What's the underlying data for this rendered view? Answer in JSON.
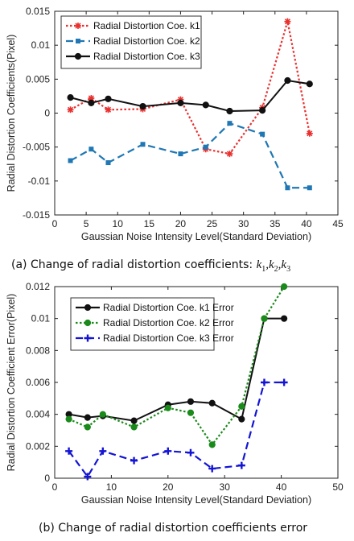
{
  "chart_data": [
    {
      "type": "line",
      "caption": "(a) Change of radial distortion coefficients:",
      "caption_math": [
        {
          "symbol": "k",
          "sub": "1",
          "sep": ","
        },
        {
          "symbol": "k",
          "sub": "2",
          "sep": ","
        },
        {
          "symbol": "k",
          "sub": "3",
          "sep": ""
        }
      ],
      "xlabel": "Gaussian Noise Intensity Level(Standard Deviation)",
      "ylabel": "Radial Distortion Coefficients(Pixel)",
      "xlim": [
        0,
        45
      ],
      "ylim": [
        -0.015,
        0.015
      ],
      "xticks": [
        0,
        5,
        10,
        15,
        20,
        25,
        30,
        35,
        40,
        45
      ],
      "xtick_labels": [
        "0",
        "5",
        "10",
        "15",
        "20",
        "25",
        "30",
        "35",
        "40",
        "45"
      ],
      "yticks": [
        -0.015,
        -0.01,
        -0.005,
        0,
        0.005,
        0.01,
        0.015
      ],
      "ytick_labels": [
        "-0.015",
        "-0.01",
        "-0.005",
        "0",
        "0.005",
        "0.01",
        "0.015"
      ],
      "grid": false,
      "legend_position": "top-left",
      "series": [
        {
          "name": "Radial Distortion Coe. k1",
          "color": "#e8312f",
          "dash": "dotted",
          "marker": "star",
          "x": [
            2.5,
            5.8,
            8.5,
            14,
            20,
            24,
            27.8,
            33,
            37,
            40.5
          ],
          "y": [
            0.0005,
            0.0022,
            0.0005,
            0.0006,
            0.002,
            -0.0053,
            -0.006,
            0.0008,
            0.0135,
            -0.003
          ]
        },
        {
          "name": "Radial Distortion Coe. k2",
          "color": "#1f77b4",
          "dash": "dashed",
          "marker": "square",
          "x": [
            2.5,
            5.8,
            8.5,
            14,
            20,
            24,
            27.8,
            33,
            37,
            40.5
          ],
          "y": [
            -0.007,
            -0.0053,
            -0.0073,
            -0.0046,
            -0.006,
            -0.005,
            -0.0015,
            -0.0031,
            -0.011,
            -0.011
          ]
        },
        {
          "name": "Radial Distortion Coe. k3",
          "color": "#111111",
          "dash": "solid",
          "marker": "circle",
          "x": [
            2.5,
            5.8,
            8.5,
            14,
            20,
            24,
            27.8,
            33,
            37,
            40.5
          ],
          "y": [
            0.0023,
            0.0015,
            0.0021,
            0.001,
            0.0015,
            0.0012,
            0.0003,
            0.0004,
            0.0048,
            0.0043
          ]
        }
      ]
    },
    {
      "type": "line",
      "caption": "(b) Change of radial distortion coefficients error",
      "xlabel": "Gaussian Noise Intensity Level(Standard Deviation)",
      "ylabel": "Radial Distortion Coefficient Error(Pixel)",
      "xlim": [
        0,
        50
      ],
      "ylim": [
        0,
        0.012
      ],
      "xticks": [
        0,
        10,
        20,
        30,
        40,
        50
      ],
      "xtick_labels": [
        "0",
        "10",
        "20",
        "30",
        "40",
        "50"
      ],
      "yticks": [
        0,
        0.002,
        0.004,
        0.006,
        0.008,
        0.01,
        0.012
      ],
      "ytick_labels": [
        "0",
        "0.002",
        "0.004",
        "0.006",
        "0.008",
        "0.01",
        "0.012"
      ],
      "grid": false,
      "legend_position": "top-left",
      "series": [
        {
          "name": "Radial Distortion Coe. k1 Error",
          "color": "#111111",
          "dash": "solid",
          "marker": "circle",
          "x": [
            2.5,
            5.8,
            8.5,
            14,
            20,
            24,
            27.8,
            33,
            37,
            40.5
          ],
          "y": [
            0.004,
            0.0038,
            0.0039,
            0.0036,
            0.0046,
            0.0048,
            0.0047,
            0.0037,
            0.01,
            0.01
          ]
        },
        {
          "name": "Radial Distortion Coe. k2 Error",
          "color": "#1a8a1a",
          "dash": "dotted",
          "marker": "circle",
          "x": [
            2.5,
            5.8,
            8.5,
            14,
            20,
            24,
            27.8,
            33,
            37,
            40.5
          ],
          "y": [
            0.0037,
            0.0032,
            0.004,
            0.0032,
            0.0044,
            0.0041,
            0.0021,
            0.0045,
            0.01,
            0.012
          ]
        },
        {
          "name": "Radial Distortion Coe. k3 Error",
          "color": "#1414d4",
          "dash": "dashed",
          "marker": "plus",
          "x": [
            2.5,
            5.8,
            8.5,
            14,
            20,
            24,
            27.8,
            33,
            37,
            40.5
          ],
          "y": [
            0.0017,
            0.0001,
            0.0017,
            0.0011,
            0.0017,
            0.0016,
            0.0006,
            0.0008,
            0.006,
            0.006
          ]
        }
      ]
    }
  ]
}
